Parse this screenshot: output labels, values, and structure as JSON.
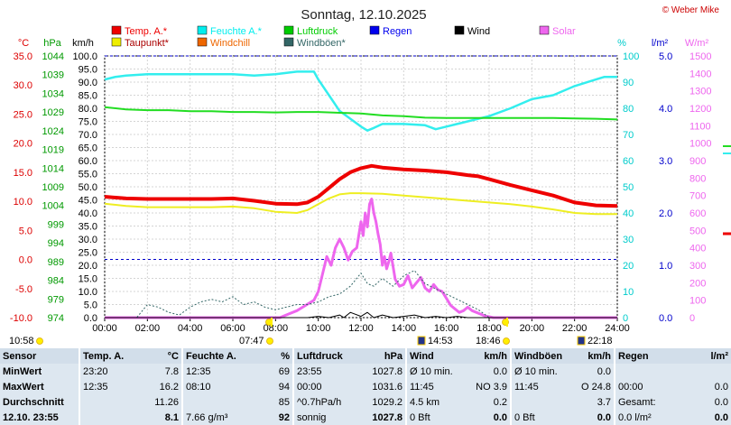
{
  "chart_data": {
    "type": "line",
    "title": "Sonntag, 12.10.2025",
    "copyright": "© Weber Mike",
    "x_ticks": [
      "00:00",
      "02:00",
      "04:00",
      "06:00",
      "08:00",
      "10:00",
      "12:00",
      "14:00",
      "16:00",
      "18:00",
      "20:00",
      "22:00",
      "24:00"
    ],
    "x_range_hours": [
      0,
      24
    ],
    "axes": {
      "temp_c": {
        "label": "°C",
        "ticks": [
          35.0,
          30.0,
          25.0,
          20.0,
          15.0,
          10.0,
          5.0,
          0.0,
          -5.0,
          -10.0
        ],
        "range": [
          -10,
          35
        ],
        "color": "#dd0000"
      },
      "pressure_hpa": {
        "label": "hPa",
        "ticks": [
          1044,
          1039,
          1034,
          1029,
          1024,
          1019,
          1014,
          1009,
          1004,
          999,
          994,
          989,
          984,
          979,
          974
        ],
        "range": [
          974,
          1044
        ],
        "color": "#009900"
      },
      "wind_kmh": {
        "label": "km/h",
        "ticks": [
          100.0,
          95.0,
          90.0,
          85.0,
          80.0,
          75.0,
          70.0,
          65.0,
          60.0,
          55.0,
          50.0,
          45.0,
          40.0,
          35.0,
          30.0,
          25.0,
          20.0,
          15.0,
          10.0,
          5.0,
          0.0
        ],
        "range": [
          0,
          100
        ],
        "color": "#000000"
      },
      "humidity_pct": {
        "label": "%",
        "ticks": [
          100,
          90,
          80,
          70,
          60,
          50,
          40,
          30,
          20,
          10,
          0
        ],
        "range": [
          0,
          100
        ],
        "color": "#00cccc"
      },
      "rain_lm2": {
        "label": "l/m²",
        "ticks": [
          5.0,
          4.0,
          3.0,
          2.0,
          1.0,
          0.0
        ],
        "range": [
          0,
          5
        ],
        "color": "#0000cc"
      },
      "solar_wm2": {
        "label": "W/m²",
        "ticks": [
          1500,
          1400,
          1300,
          1200,
          1100,
          1000,
          900,
          800,
          700,
          600,
          500,
          400,
          300,
          200,
          100,
          0
        ],
        "range": [
          0,
          1500
        ],
        "color": "#ee66ee"
      }
    },
    "legend": [
      {
        "name": "Temp. A.*",
        "color": "#ee0000"
      },
      {
        "name": "Feuchte A.*",
        "color": "#00eeee"
      },
      {
        "name": "Luftdruck",
        "color": "#00cc00"
      },
      {
        "name": "Regen",
        "color": "#0000ee"
      },
      {
        "name": "Wind",
        "color": "#000000"
      },
      {
        "name": "Solar",
        "color": "#ee66ee"
      },
      {
        "name": "Taupunkt*",
        "color": "#eeee00"
      },
      {
        "name": "Windchill",
        "color": "#ee6600"
      },
      {
        "name": "Windböen*",
        "color": "#336666"
      }
    ],
    "series": [
      {
        "name": "Feuchte A.*",
        "axis": "humidity_pct",
        "color": "#33eeee",
        "x": [
          0,
          0.5,
          1,
          2,
          3,
          4,
          5,
          6,
          7,
          8,
          9,
          9.8,
          10,
          10.5,
          11,
          11.5,
          12,
          12.3,
          12.6,
          13,
          14,
          15,
          15.5,
          16,
          16.5,
          17,
          18,
          19,
          20,
          21,
          22,
          23,
          23.4,
          24
        ],
        "y": [
          91,
          92,
          92.5,
          93,
          93,
          93,
          93,
          93,
          92.5,
          93,
          94,
          94,
          91,
          85,
          79,
          76,
          73,
          71.5,
          72.5,
          74,
          74,
          73.5,
          72,
          73,
          74,
          75,
          77,
          80,
          83.5,
          85,
          88.5,
          91,
          92,
          92
        ]
      },
      {
        "name": "Luftdruck",
        "axis": "pressure_hpa",
        "color": "#22dd22",
        "x": [
          0,
          1,
          2,
          3,
          4,
          5,
          6,
          7,
          8,
          9,
          10,
          11,
          12,
          13,
          14,
          15,
          16,
          17,
          18,
          19,
          20,
          21,
          22,
          23,
          24
        ],
        "y": [
          1030.3,
          1029.7,
          1029.5,
          1029.5,
          1029.2,
          1029.2,
          1029.0,
          1029.0,
          1028.9,
          1029.0,
          1029.0,
          1028.8,
          1028.6,
          1028.1,
          1027.9,
          1027.5,
          1027.4,
          1027.4,
          1027.4,
          1027.4,
          1027.4,
          1027.4,
          1027.3,
          1027.2,
          1027.0
        ]
      },
      {
        "name": "Taupunkt*",
        "axis": "temp_c",
        "color": "#eeee22",
        "x": [
          0,
          1,
          2,
          3,
          4,
          5,
          6,
          7,
          8,
          9,
          9.5,
          10,
          10.5,
          11,
          11.5,
          12,
          13,
          14,
          15,
          16,
          17,
          18,
          19,
          20,
          21,
          22,
          23,
          24
        ],
        "y": [
          9.6,
          9.2,
          9.0,
          9.0,
          9.0,
          9.0,
          9.1,
          8.8,
          8.2,
          8.0,
          8.5,
          9.5,
          10.5,
          11.2,
          11.4,
          11.4,
          11.3,
          11.0,
          10.7,
          10.4,
          10.1,
          9.8,
          9.5,
          9.1,
          8.6,
          8.0,
          7.8,
          7.8
        ]
      },
      {
        "name": "Windchill",
        "axis": "temp_c",
        "color": "#ee7700",
        "x": [
          0,
          1,
          2,
          3,
          4,
          5,
          6,
          7,
          8,
          9,
          9.5,
          10,
          10.5,
          11,
          11.5,
          12,
          12.5,
          13,
          14,
          15,
          16,
          17,
          17.5,
          18,
          19,
          20,
          21,
          22,
          23,
          24
        ],
        "y": [
          10.8,
          10.5,
          10.4,
          10.4,
          10.4,
          10.4,
          10.5,
          10.1,
          9.6,
          9.5,
          9.8,
          10.8,
          12.3,
          13.8,
          15,
          15.7,
          16.1,
          15.8,
          15.5,
          15.3,
          15,
          14.5,
          14.3,
          13.8,
          12.8,
          11.9,
          11,
          9.8,
          9.3,
          9.2
        ]
      },
      {
        "name": "Temp. A.*",
        "axis": "temp_c",
        "color": "#ee0000",
        "x": [
          0,
          1,
          2,
          3,
          4,
          5,
          6,
          7,
          8,
          9,
          9.5,
          10,
          10.5,
          11,
          11.5,
          12,
          12.5,
          13,
          14,
          15,
          16,
          17,
          17.5,
          18,
          19,
          20,
          21,
          22,
          23,
          24
        ],
        "y": [
          10.8,
          10.5,
          10.4,
          10.4,
          10.4,
          10.4,
          10.5,
          10.1,
          9.6,
          9.5,
          9.8,
          10.8,
          12.3,
          13.8,
          15,
          15.7,
          16.1,
          15.8,
          15.5,
          15.3,
          15,
          14.5,
          14.3,
          13.8,
          12.8,
          11.9,
          11,
          9.8,
          9.3,
          9.2
        ]
      },
      {
        "name": "Solar",
        "axis": "solar_wm2",
        "color": "#ee66ee",
        "x": [
          0,
          8.2,
          8.6,
          9,
          9.4,
          9.8,
          10,
          10.2,
          10.4,
          10.6,
          10.8,
          11,
          11.2,
          11.4,
          11.6,
          11.8,
          12,
          12.1,
          12.2,
          12.3,
          12.4,
          12.5,
          12.6,
          12.7,
          12.8,
          12.9,
          13,
          13.1,
          13.2,
          13.3,
          13.4,
          13.6,
          13.8,
          14,
          14.2,
          14.4,
          14.6,
          14.8,
          15,
          15.2,
          15.4,
          15.6,
          15.8,
          16,
          16.2,
          16.4,
          16.6,
          16.8,
          17,
          17.2,
          17.4,
          17.6,
          17.8,
          18,
          18.2,
          18.4,
          24
        ],
        "y": [
          0,
          0,
          20,
          40,
          70,
          100,
          150,
          250,
          350,
          300,
          400,
          450,
          400,
          330,
          380,
          400,
          550,
          470,
          600,
          520,
          650,
          680,
          600,
          550,
          480,
          420,
          300,
          350,
          280,
          320,
          370,
          220,
          180,
          190,
          240,
          170,
          200,
          230,
          170,
          150,
          190,
          160,
          150,
          110,
          70,
          50,
          30,
          40,
          60,
          40,
          30,
          20,
          10,
          5,
          0,
          0,
          0
        ]
      },
      {
        "name": "Windböen*",
        "axis": "wind_kmh",
        "color": "#336666",
        "x": [
          0,
          1.5,
          2,
          2.5,
          3,
          3.5,
          4,
          4.5,
          5,
          5.5,
          6,
          6.5,
          7,
          7.5,
          8,
          8.5,
          9,
          9.5,
          10,
          10.5,
          11,
          11.5,
          12,
          12.3,
          12.6,
          13,
          13.5,
          14,
          14.5,
          15,
          15.5,
          16,
          16.5,
          17,
          17.5,
          18,
          24
        ],
        "y": [
          0,
          0,
          5,
          4,
          2,
          1,
          4,
          6,
          7,
          6,
          8,
          5,
          6,
          4,
          3,
          4,
          5,
          5,
          6,
          8,
          9,
          12,
          17,
          13,
          12,
          15,
          12,
          16,
          18,
          13,
          11,
          9,
          7,
          5,
          3,
          0,
          0
        ]
      },
      {
        "name": "Wind",
        "axis": "wind_kmh",
        "color": "#000000",
        "x": [
          0,
          9.5,
          10,
          10.5,
          11,
          11.2,
          11.5,
          12,
          12.3,
          12.6,
          13,
          13.5,
          14,
          14.5,
          15,
          15.5,
          16,
          16.5,
          17,
          17.5,
          24
        ],
        "y": [
          0,
          0,
          0.5,
          0,
          1,
          0,
          2,
          0.5,
          2,
          0,
          1,
          0,
          0.5,
          1,
          0,
          0.5,
          0,
          0.5,
          0,
          0,
          0
        ]
      }
    ],
    "dashed_refs": [
      {
        "axis": "temp_c",
        "value": 0.0,
        "color": "#0000cc"
      },
      {
        "axis": "temp_c",
        "value": 35.0,
        "color": "#0000cc"
      }
    ],
    "events": {
      "left_time": "10:58",
      "sunrise": "07:47",
      "moon_1": "14:53",
      "sunset": "18:46",
      "moon_2": "22:18"
    }
  },
  "stats": {
    "headers": [
      "Sensor",
      "Temp. A.",
      "°C",
      "Feuchte A.",
      "%",
      "Luftdruck",
      "hPa",
      "Wind",
      "km/h",
      "Windböen",
      "km/h",
      "Regen",
      "l/m²"
    ],
    "rows": [
      {
        "label": "MinWert",
        "c": [
          "23:20",
          "7.8",
          "12:35",
          "69",
          "23:55",
          "1027.8",
          "Ø 10 min.",
          "0.0",
          "Ø 10 min.",
          "0.0",
          "",
          ""
        ]
      },
      {
        "label": "MaxWert",
        "c": [
          "12:35",
          "16.2",
          "08:10",
          "94",
          "00:00",
          "1031.6",
          "11:45",
          "NO 3.9",
          "11:45",
          "O 24.8",
          "00:00",
          "0.0"
        ]
      },
      {
        "label": "Durchschnitt",
        "c": [
          "",
          "11.26",
          "",
          "85",
          "^0.7hPa/h",
          "1029.2",
          "4.5 km",
          "0.2",
          "",
          "3.7",
          "Gesamt:",
          "0.0"
        ]
      },
      {
        "label": "12.10. 23:55",
        "c": [
          "",
          "8.1",
          "7.66 g/m³",
          "92",
          "sonnig",
          "1027.8",
          "0 Bft",
          "0.0",
          "0 Bft",
          "0.0",
          "0.0 l/m²",
          "0.0"
        ]
      }
    ]
  }
}
